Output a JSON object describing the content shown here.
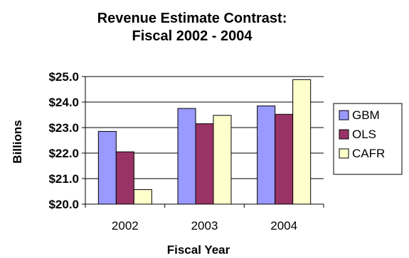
{
  "chart_data": {
    "type": "bar",
    "title_lines": [
      "Revenue Estimate Contrast:",
      "Fiscal 2002 - 2004"
    ],
    "xlabel": "Fiscal Year",
    "ylabel": "Billions",
    "categories": [
      "2002",
      "2003",
      "2004"
    ],
    "series": [
      {
        "name": "GBM",
        "values": [
          22.85,
          23.75,
          23.85
        ],
        "color": "#9999ff"
      },
      {
        "name": "OLS",
        "values": [
          22.05,
          23.15,
          23.52
        ],
        "color": "#993366"
      },
      {
        "name": "CAFR",
        "values": [
          20.57,
          23.48,
          24.88
        ],
        "color": "#ffffcc"
      }
    ],
    "ylim": [
      20.0,
      25.0
    ],
    "yticks": [
      20.0,
      21.0,
      22.0,
      23.0,
      24.0,
      25.0
    ],
    "ytick_labels": [
      "$20.0",
      "$21.0",
      "$22.0",
      "$23.0",
      "$24.0",
      "$25.0"
    ],
    "grid": "horizontal",
    "legend_position": "right"
  }
}
